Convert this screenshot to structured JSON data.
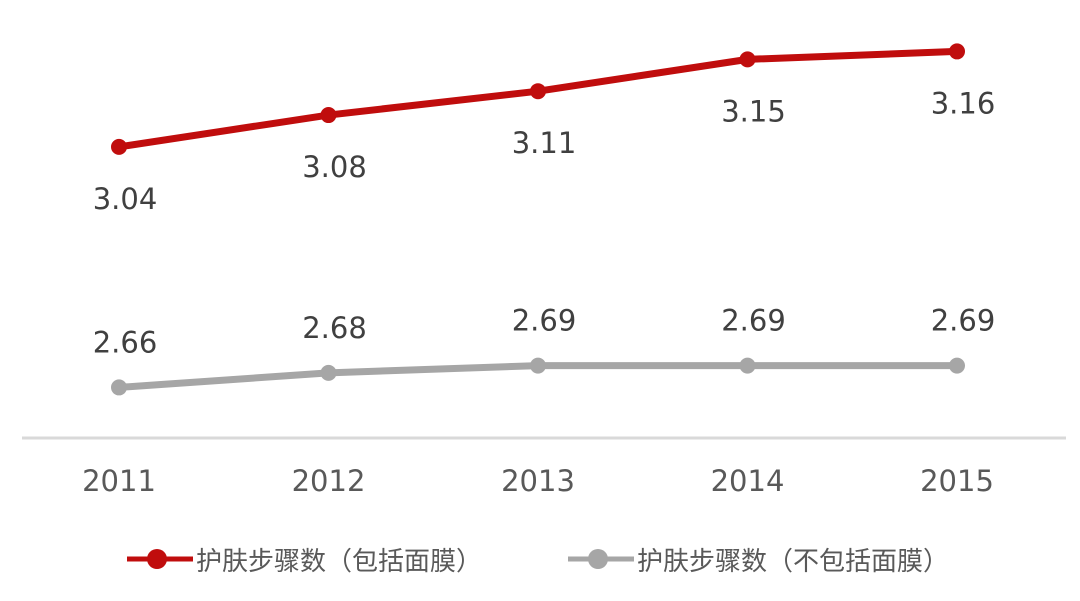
{
  "chart_data": {
    "type": "line",
    "title": "",
    "xlabel": "",
    "ylabel": "",
    "categories": [
      "2011",
      "2012",
      "2013",
      "2014",
      "2015"
    ],
    "series": [
      {
        "name": "护肤步骤数（包括面膜）",
        "values": [
          3.04,
          3.08,
          3.11,
          3.15,
          3.16
        ],
        "data_labels": [
          "3.04",
          "3.08",
          "3.11",
          "3.15",
          "3.16"
        ],
        "color": "#C00D0D",
        "marker": "circle",
        "label_position": "below"
      },
      {
        "name": "护肤步骤数（不包括面膜）",
        "values": [
          2.66,
          2.68,
          2.69,
          2.69,
          2.69
        ],
        "data_labels": [
          "2.66",
          "2.68",
          "2.69",
          "2.69",
          "2.69"
        ],
        "color": "#A6A6A6",
        "marker": "circle",
        "label_position": "above"
      }
    ],
    "ylim": [
      2.5,
      3.3
    ],
    "y_axis_visible": false,
    "grid": false,
    "legend_position": "bottom",
    "colors": {
      "background": "#FFFFFF",
      "axis_line": "#D9D9D9",
      "data_label_text": "#404040",
      "tick_label_text": "#595959"
    }
  }
}
